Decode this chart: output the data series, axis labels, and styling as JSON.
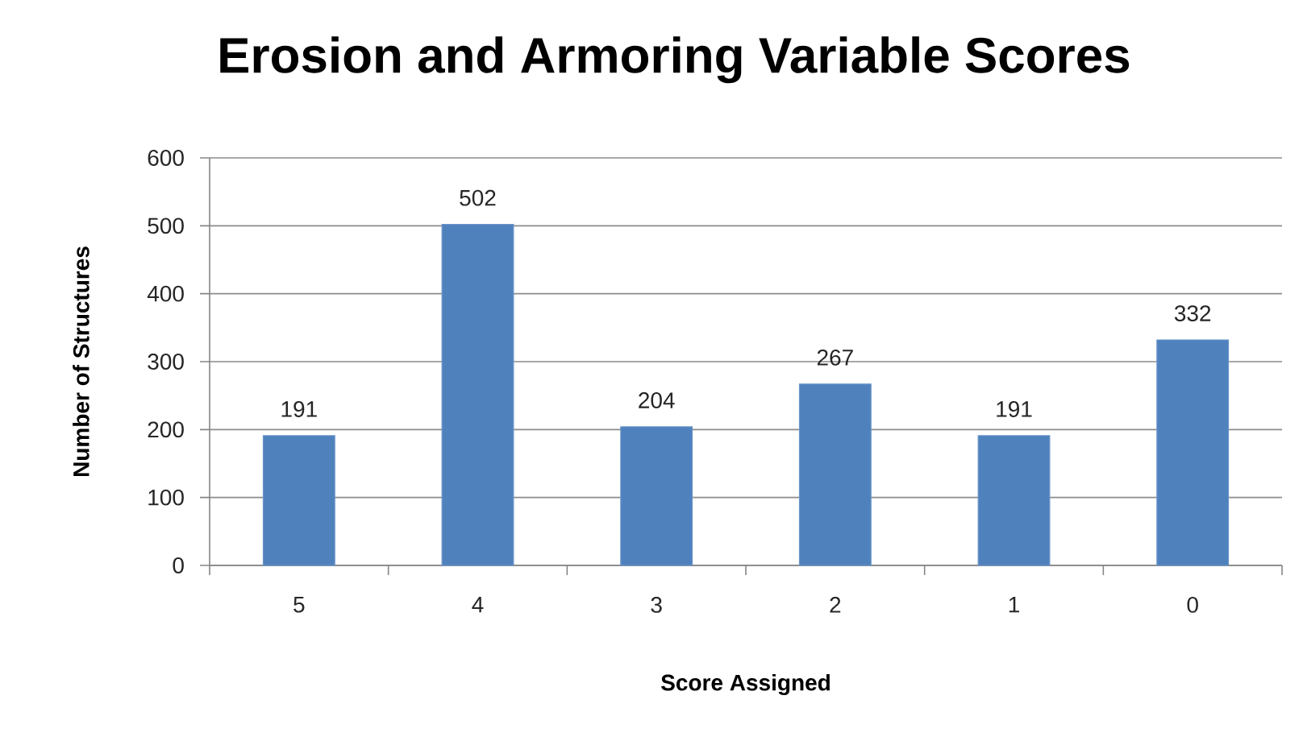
{
  "chart_data": {
    "type": "bar",
    "title": "Erosion and Armoring Variable Scores",
    "xlabel": "Score Assigned",
    "ylabel": "Number of Structures",
    "categories": [
      "5",
      "4",
      "3",
      "2",
      "1",
      "0"
    ],
    "values": [
      191,
      502,
      204,
      267,
      191,
      332
    ],
    "color": "#4f81bd",
    "ylim": [
      0,
      600
    ],
    "yticks": [
      0,
      100,
      200,
      300,
      400,
      500,
      600
    ],
    "grid": "y",
    "data_labels": true
  }
}
